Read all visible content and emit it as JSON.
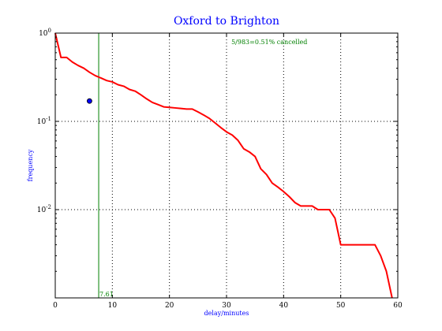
{
  "chart_data": {
    "type": "line",
    "title": "Oxford to Brighton",
    "xlabel": "delay/minutes",
    "ylabel": "frequency",
    "xlim": [
      0,
      60
    ],
    "ylim": [
      0.001,
      1
    ],
    "yscale": "log",
    "grid": true,
    "x_ticks": [
      0,
      10,
      20,
      30,
      40,
      50,
      60
    ],
    "x_tick_labels": [
      "0",
      "10",
      "20",
      "30",
      "40",
      "50",
      "60"
    ],
    "y_ticks": [
      0.01,
      0.1,
      1
    ],
    "y_tick_labels": [
      {
        "base": "10",
        "exp": "-2"
      },
      {
        "base": "10",
        "exp": "-1"
      },
      {
        "base": "10",
        "exp": "0"
      }
    ],
    "series": [
      {
        "color": "#ff0000",
        "x": [
          0,
          1,
          2,
          3,
          4,
          5,
          6,
          7,
          8,
          9,
          10,
          11,
          12,
          13,
          14,
          15,
          16,
          17,
          18,
          19,
          20,
          21,
          22,
          23,
          24,
          25,
          26,
          27,
          28,
          29,
          30,
          31,
          32,
          33,
          34,
          35,
          36,
          37,
          38,
          39,
          40,
          41,
          42,
          43,
          44,
          45,
          46,
          47,
          48,
          49,
          50,
          51,
          52,
          53,
          54,
          55,
          56,
          57,
          58,
          59
        ],
        "y": [
          1.0,
          0.53,
          0.53,
          0.47,
          0.43,
          0.4,
          0.36,
          0.33,
          0.31,
          0.29,
          0.28,
          0.26,
          0.25,
          0.23,
          0.22,
          0.2,
          0.18,
          0.164,
          0.155,
          0.146,
          0.144,
          0.142,
          0.14,
          0.138,
          0.138,
          0.128,
          0.118,
          0.108,
          0.096,
          0.085,
          0.076,
          0.07,
          0.061,
          0.049,
          0.045,
          0.04,
          0.029,
          0.025,
          0.02,
          0.018,
          0.016,
          0.014,
          0.012,
          0.011,
          0.011,
          0.011,
          0.01,
          0.01,
          0.01,
          0.008,
          0.004,
          0.004,
          0.004,
          0.004,
          0.004,
          0.004,
          0.004,
          0.003,
          0.002,
          0.001
        ]
      }
    ],
    "vline": {
      "x": 7.61,
      "label": "7.61",
      "color": "#008000"
    },
    "point": {
      "x": 6,
      "y": 0.17,
      "color": "#0000ff"
    },
    "annotation": {
      "text": "5/983=0.51% cancelled",
      "x": 37.5,
      "y": 0.8,
      "color": "#008000"
    },
    "colors": {
      "title": "#0000ff",
      "axis_labels": "#0000ff",
      "grid": "#000000"
    }
  }
}
